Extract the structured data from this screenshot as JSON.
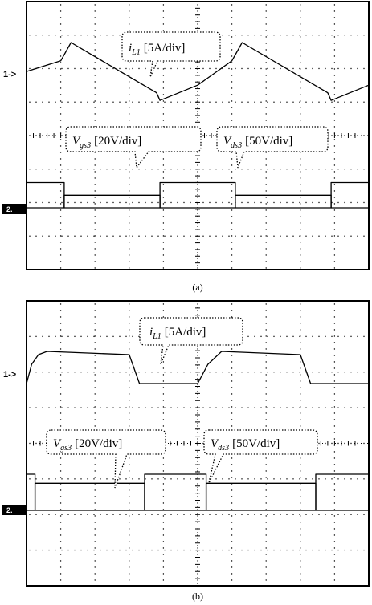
{
  "chart_data": [
    {
      "type": "line",
      "panel_caption": "(a)",
      "channel_markers": {
        "ch1": "1->",
        "ch2": "2."
      },
      "grid": true,
      "series": [
        {
          "label_main": "i",
          "label_sub": "L1",
          "label_scale": "[5A/div]",
          "x": [
            0,
            1.0,
            1.3,
            3.8,
            3.9,
            5.0,
            6.0,
            6.3,
            8.8,
            8.9,
            10
          ],
          "y": [
            4.65,
            5.0,
            5.6,
            3.95,
            3.7,
            4.2,
            5.0,
            5.6,
            3.95,
            3.7,
            4.2
          ]
        },
        {
          "label_main": "V",
          "label_sub": "gs3",
          "label_scale": "[20V/div]",
          "x": [
            0,
            1.1,
            1.1,
            3.9,
            3.9,
            6.1,
            6.1,
            8.9,
            8.9,
            10
          ],
          "y": [
            0.0,
            0.0,
            0.35,
            0.35,
            0.0,
            0.0,
            0.35,
            0.35,
            0.0,
            0.0
          ]
        },
        {
          "label_main": "V",
          "label_sub": "ds3",
          "label_scale": "[50V/div]",
          "x": [
            0,
            1.1,
            1.1,
            3.9,
            3.9,
            6.1,
            6.1,
            8.9,
            8.9,
            10
          ],
          "y": [
            0.7,
            0.7,
            0.0,
            0.0,
            0.7,
            0.7,
            0.0,
            0.0,
            0.7,
            0.7
          ]
        }
      ]
    },
    {
      "type": "line",
      "panel_caption": "(b)",
      "channel_markers": {
        "ch1": "1->",
        "ch2": "2."
      },
      "grid": true,
      "series": [
        {
          "label_main": "i",
          "label_sub": "L1",
          "label_scale": "[5A/div]",
          "x": [
            0,
            0.15,
            0.35,
            0.6,
            3.0,
            3.3,
            4.8,
            5.0,
            5.3,
            5.7,
            8.0,
            8.3,
            10
          ],
          "y": [
            4.3,
            4.9,
            5.2,
            5.3,
            5.2,
            4.3,
            4.3,
            4.3,
            4.9,
            5.3,
            5.2,
            4.3,
            4.3
          ]
        },
        {
          "label_main": "V",
          "label_sub": "gs3",
          "label_scale": "[20V/div]",
          "x": [
            0,
            0.25,
            0.25,
            3.45,
            3.45,
            5.25,
            5.25,
            8.45,
            8.45,
            10
          ],
          "y": [
            0.0,
            0.0,
            0.75,
            0.75,
            0.0,
            0.0,
            0.75,
            0.75,
            0.0,
            0.0
          ]
        },
        {
          "label_main": "V",
          "label_sub": "ds3",
          "label_scale": "[50V/div]",
          "x": [
            0,
            0.25,
            0.25,
            3.45,
            3.45,
            5.25,
            5.25,
            8.45,
            8.45,
            10
          ],
          "y": [
            1.0,
            1.0,
            0.0,
            0.0,
            1.0,
            1.0,
            0.0,
            0.0,
            1.0,
            1.0
          ]
        }
      ]
    }
  ]
}
